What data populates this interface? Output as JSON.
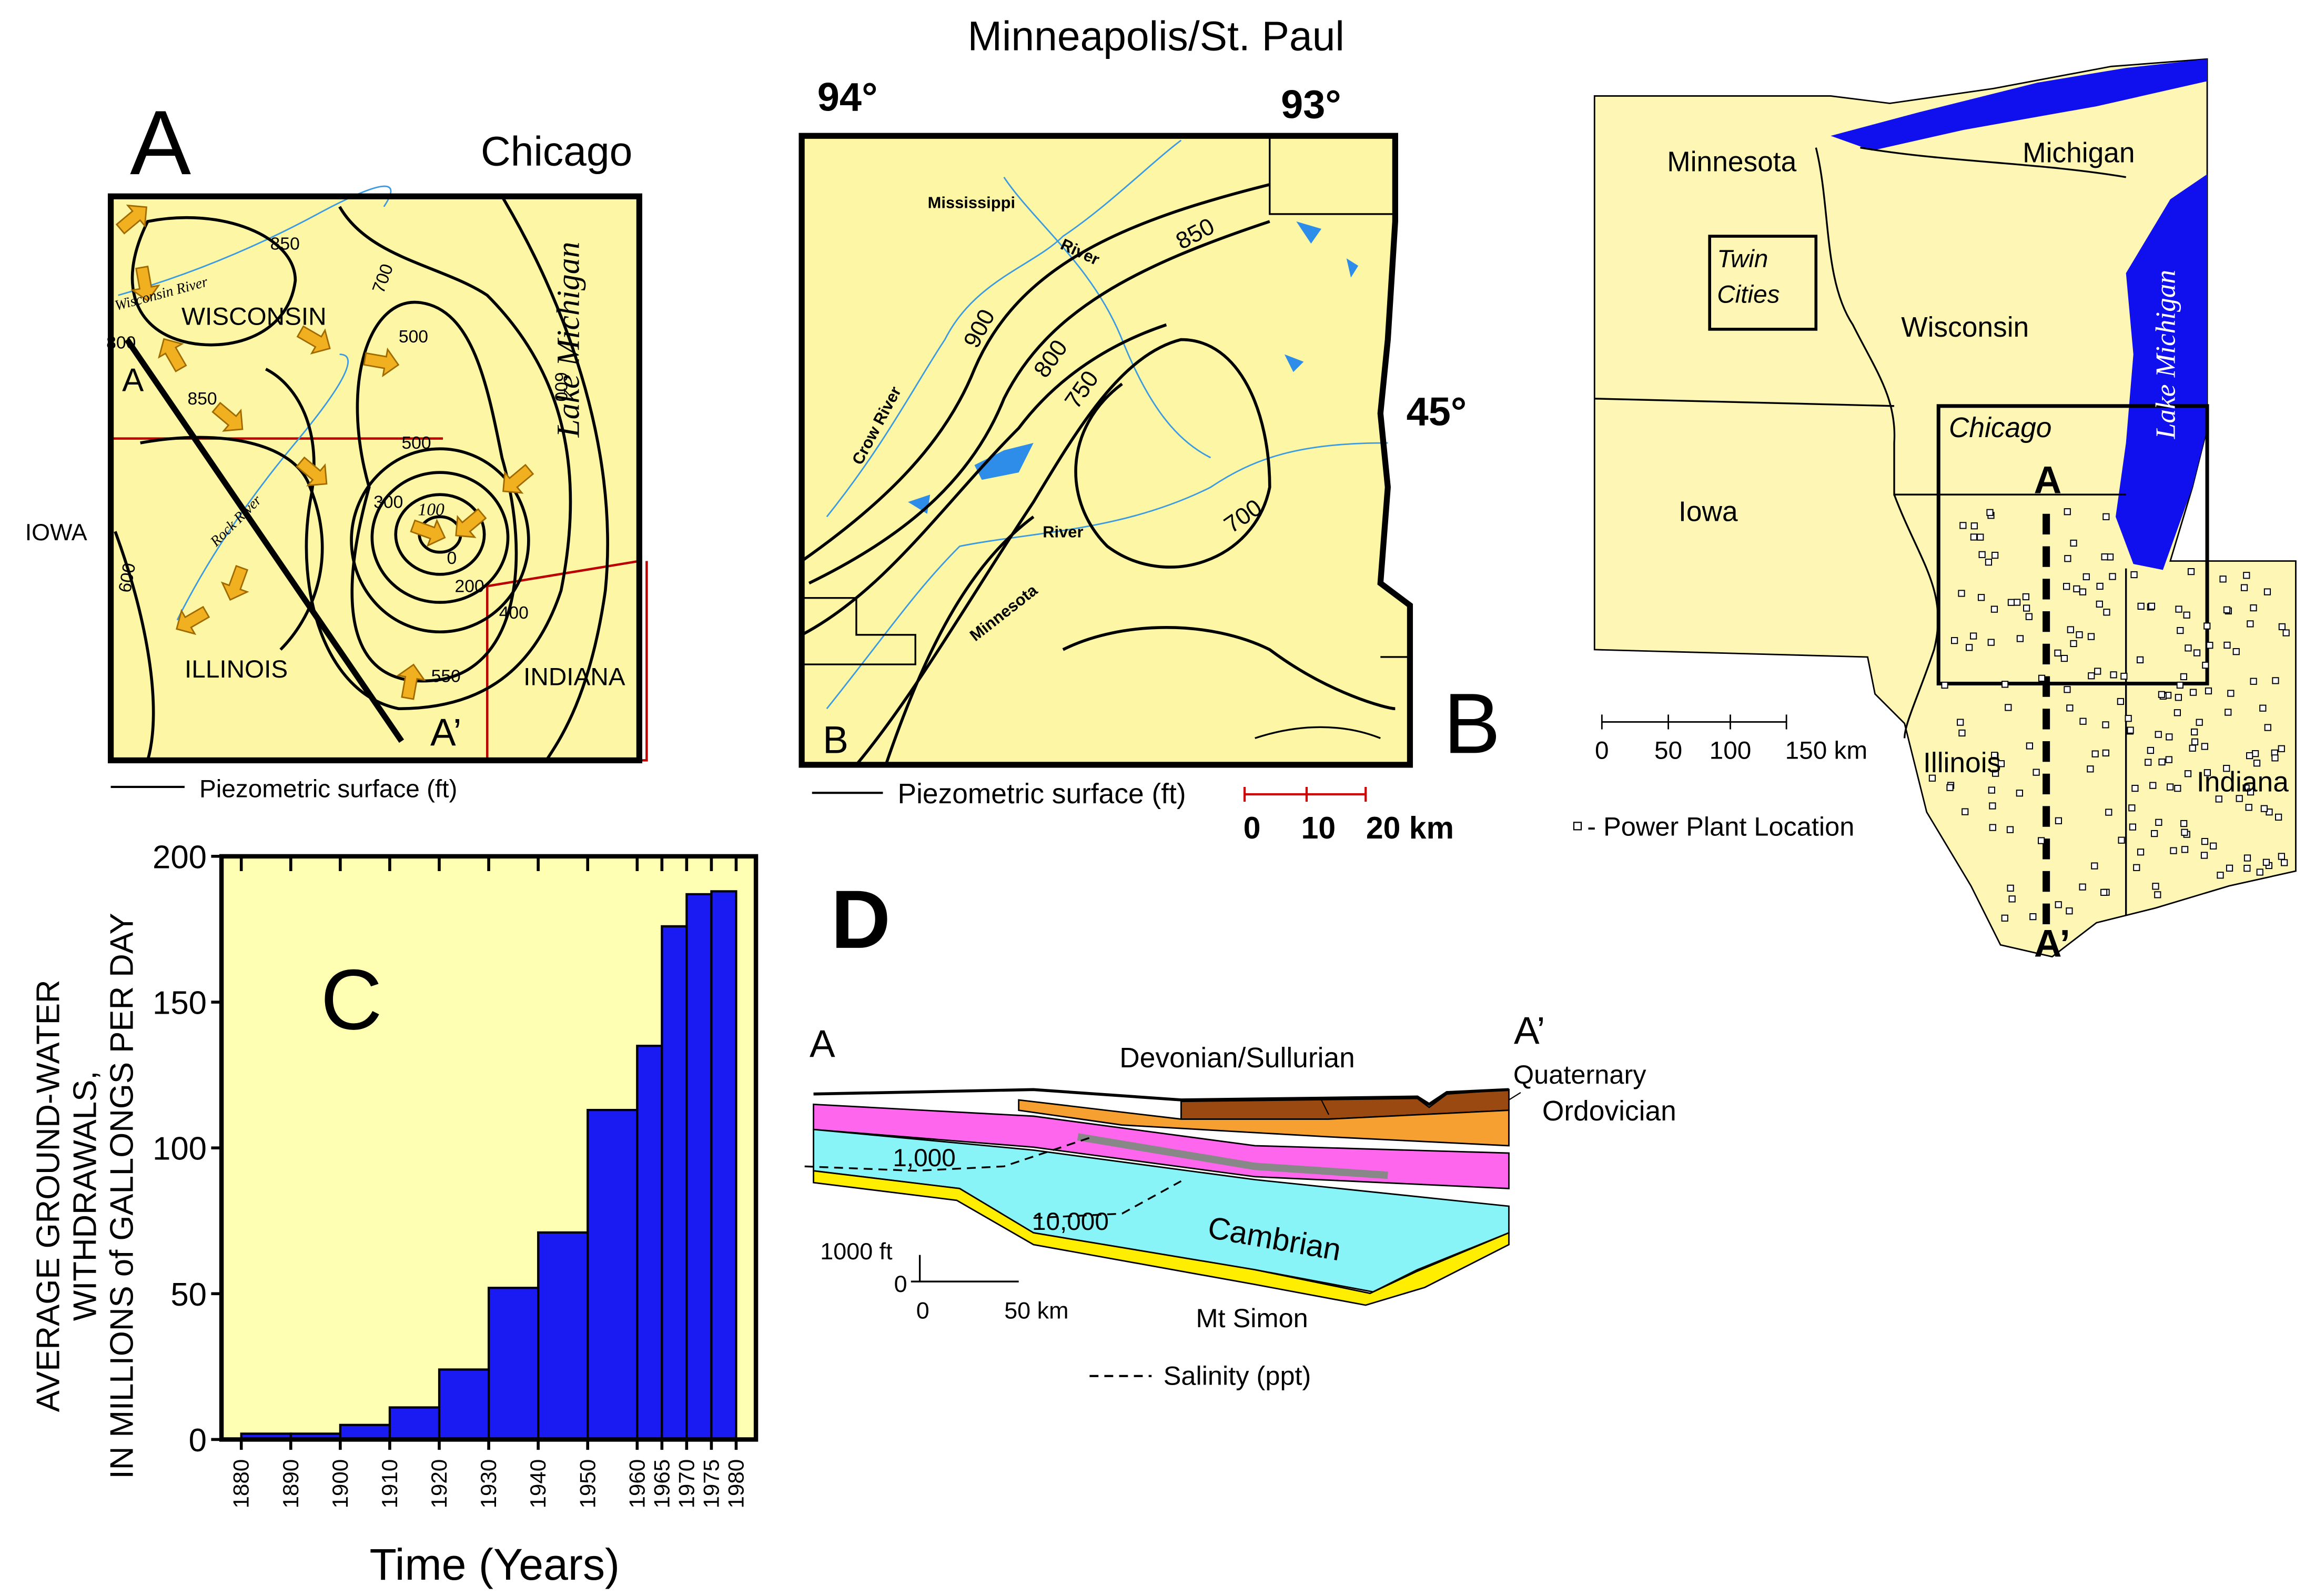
{
  "panel_a": {
    "label": "A",
    "title": "Chicago",
    "states": [
      "WISCONSIN",
      "ILLINOIS",
      "INDIANA",
      "IOWA"
    ],
    "lake": "Lake Michigan",
    "section_start": "A",
    "section_end": "A’",
    "rivers": [
      "Wisconsin River",
      "Rock River"
    ],
    "contours": [
      "850",
      "700",
      "500",
      "800",
      "850",
      "600",
      "500",
      "300",
      "100",
      "0",
      "200",
      "400",
      "550",
      "600"
    ],
    "legend": "Piezometric surface (ft)"
  },
  "panel_b": {
    "label": "B",
    "corner_label": "B",
    "title": "Minneapolis/St. Paul",
    "longitudes": [
      "94°",
      "93°"
    ],
    "latitude": "45°",
    "rivers": [
      "Mississippi",
      "River",
      "Crow River",
      "Minnesota",
      "River"
    ],
    "contours": [
      "900",
      "850",
      "800",
      "750",
      "700"
    ],
    "legend": "Piezometric surface (ft)",
    "scale": [
      "0",
      "10",
      "20 km"
    ]
  },
  "map": {
    "states": [
      "Minnesota",
      "Michigan",
      "Wisconsin",
      "Iowa",
      "Illinois",
      "Indiana"
    ],
    "boxes": [
      [
        "Twin",
        "Cities"
      ],
      "Chicago"
    ],
    "lake": "Lake Michigan",
    "section_start": "A",
    "section_end": "A’",
    "scale": [
      "0",
      "50",
      "100",
      "150 km"
    ],
    "legend": "- Power Plant Location"
  },
  "panel_d": {
    "label": "D",
    "section_start": "A",
    "section_end": "A’",
    "units": [
      "Devonian/Sullurian",
      "Quaternary",
      "Ordovician",
      "Cambrian",
      "Mt Simon"
    ],
    "salinity_contours": [
      "1,000",
      "10,000"
    ],
    "vertical_scale": [
      "1000 ft",
      "0"
    ],
    "horizontal_scale": [
      "0",
      "50 km"
    ],
    "legend": "Salinity (ppt)"
  },
  "chart_data": {
    "type": "histogram",
    "panel_label": "C",
    "bins": [
      1880,
      1890,
      1900,
      1910,
      1920,
      1930,
      1940,
      1950,
      1960,
      1965,
      1970,
      1975,
      1980
    ],
    "values": [
      2,
      2,
      5,
      11,
      24,
      52,
      71,
      113,
      135,
      176,
      187,
      188
    ],
    "color": "#1a1af2",
    "background": "#ffffb4",
    "xlim": [
      1876,
      1984
    ],
    "xticks": [
      1880,
      1890,
      1900,
      1910,
      1920,
      1930,
      1940,
      1950,
      1960,
      1965,
      1970,
      1975,
      1980
    ],
    "ylim": [
      0,
      200
    ],
    "yticks": [
      0,
      50,
      100,
      150,
      200
    ],
    "ylabel": [
      "AVERAGE GROUND-WATER",
      "WITHDRAWALS,",
      "IN MILLIONS of GALLONGS PER DAY"
    ],
    "xlabel": "Time (Years)"
  }
}
